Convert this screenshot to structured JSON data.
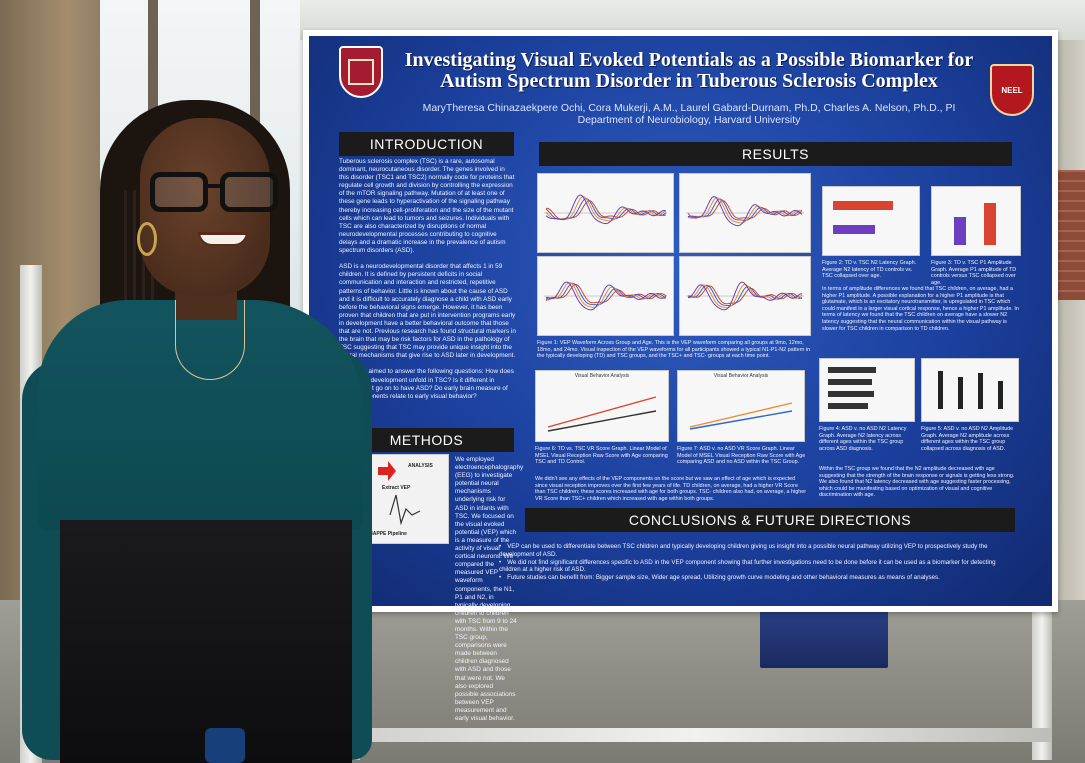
{
  "poster": {
    "title_line1": "Investigating Visual Evoked Potentials as a Possible Biomarker for",
    "title_line2": "Autism Spectrum Disorder in Tuberous Sclerosis Complex",
    "authors": "MaryTheresa Chinazaekpere Ochi, Cora Mukerji, A.M., Laurel Gabard-Durnam, Ph.D, Charles A. Nelson, Ph.D., PI",
    "department": "Department of Neurobiology, Harvard University",
    "seal_right_text": "NEEL",
    "sections": {
      "introduction": "INTRODUCTION",
      "results": "RESULTS",
      "methods": "METHODS",
      "conclusions": "CONCLUSIONS & FUTURE DIRECTIONS"
    },
    "intro_p1": "Tuberous sclerosis complex (TSC) is a rare, autosomal dominant, neurocutaneous disorder. The genes involved in this disorder (TSC1 and TSC2) normally code for proteins that regulate cell growth and division by controlling the expression of the mTOR signaling pathway. Mutation of at least one of these gene leads to hyperactivation of the signaling pathway thereby increasing cell-proliferation and the size of the mutant cells which can lead to tumors and seizures. Individuals with TSC are also characterized by disruptions of normal neurodevelopmental processes contributing to cognitive delays and a dramatic increase in the prevalence of autism spectrum disorders (ASD).",
    "intro_p2": "ASD is a neurodevelopmental disorder that affects 1 in 59 children. It is defined by persistent deficits in social communication and interaction and restricted, repetitive patterns of behavior. Little is known about the cause of ASD and it is difficult to accurately diagnose a child with ASD early before the behavioral signs emerge. However, it has been proven that children that are put in intervention programs early in development have a better behavioral outcome that those that are not. Previous research has found structural markers in the brain that may be risk factors for ASD in the pathology of TSC suggesting that TSC may provide unique insight into the neural mechanisms that give rise to ASD later in development.",
    "intro_p3": "Our study aimed to answer the following questions: How does early brain development unfold in TSC? Is it different in children that go on to have ASD? Do early brain measure of VEP components relate to early visual behavior?",
    "methods_text": "We employed electroencephalography (EEG) to investigate potential neural mechanisms underlying risk for ASD in infants with TSC. We focused on the visual evoked potential (VEP) which is a measure of the activity of visual cortical neurons. We compared the measured VEP waveform components, the N1, P1 and N2, in typically developing children to children with TSC from 9 to 24 months. Within the TSC group, comparisons were made between children diagnosed with ASD and those that were not. We also explored possible associations between VEP measurement and early visual behavior.",
    "methods_tags": {
      "analysis": "ANALYSIS",
      "extract": "Extract VEP",
      "pipeline": "Run HAPPE Pipeline"
    },
    "fig1_caption": "Figure 1: VEP Waveform Across Group and Age. This is the VEP waveform comparing all groups at 9mo, 12mo, 18mo, and 24mo. Visual inspection of the VEP waveforms for all participants showed a typical N1-P1-N2 pattern in the typically developing (TD) and TSC groups, and the TSC+ and TSC- groups at each time point.",
    "fig2_caption": "Figure 2: TD v. TSC N2 Latency Graph. Average N2 latency of TD controls vs. TSC collapsed over age.",
    "fig3_caption": "Figure 3: TD v. TSC P1 Amplitude Graph. Average P1 amplitude of TD controls versus TSC collapsed over age.",
    "fig23_text": "In terms of amplitude differences we found that TSC children, on average, had a higher P1 amplitude. A possible explanation for a higher P1 amplitude is that glutamate, which is an excitatory neurotransmitter, is upregulated in TSC which could manifest in a larger visual cortical response, hence a higher P1 amplitude. In terms of latency we found that the TSC children on average have a slower N2 latency suggesting that the neural communication within the visual pathway is slower for TSC children in comparison to TD children.",
    "fig4_caption": "Figure 4: ASD v. no ASD N2 Latency Graph. Average N2 latency across different ages within the TSC group across ASD diagnosis.",
    "fig5_caption": "Figure 5: ASD v. no ASD N2 Amplitude Graph. Average N2 amplitude across different ages within the TSC group collapsed across diagnosis of ASD.",
    "fig45_text": "Within the TSC group we found that the N2 amplitude decreased with age suggesting that the strength of the brain response or signals is getting less strong. We also found that N2 latency decreased with age suggesting faster processing, which could be manifesting based on optimization of visual and cognitive discrimination with age.",
    "fig6_caption": "Figure 6: TD vs. TSC VR Score Graph. Linear Model of MSEL Visual Reception Raw Score with Age comparing TSC and TD Control.",
    "fig7_caption": "Figure 7: ASD v. no ASD VR Score Graph. Linear Model of MSEL Visual Reception Raw Score with Age comparing ASD and no ASD within the TSC Group.",
    "fig67_text": "We didn't see any effects of the VEP components on the score but we saw an effect of age which is expected since visual reception improves over the first few years of life. TD children, on average, had a higher VR Score than TSC children; these scores increased with age for both groups. TSC- children also had, on average, a higher VR Score than TSC+ children which increased with age within both groups.",
    "vr_chart_title": "Visual Behavior Analysis",
    "conclusions": [
      "VEP can be used to differentiate between TSC children and typically developing children giving us insight into a possible neural pathway utilizing VEP to prospectively study the development of ASD.",
      "We did not find significant differences specific to ASD in the VEP component showing that further investigations need to be done before it can be used as a biomarker for detecting children at a higher risk of ASD.",
      "Future studies can benefit from: Bigger sample size, Wider age spread, Utilizing growth curve modeling and other behavioral measures as means of analyses."
    ]
  },
  "colors": {
    "poster_blue": "#1b3f9c",
    "header_black": "#1b1b1b",
    "shirt_teal": "#0f4c55",
    "series_red": "#d9432f",
    "series_blue": "#2f66d0",
    "series_orange": "#ef8a2a",
    "series_purple": "#6b3fc0"
  }
}
